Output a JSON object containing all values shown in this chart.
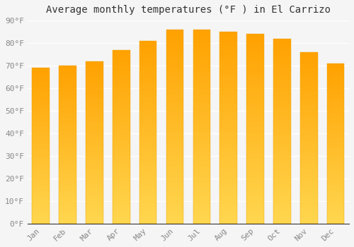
{
  "title": "Average monthly temperatures (°F ) in El Carrizo",
  "months": [
    "Jan",
    "Feb",
    "Mar",
    "Apr",
    "May",
    "Jun",
    "Jul",
    "Aug",
    "Sep",
    "Oct",
    "Nov",
    "Dec"
  ],
  "values": [
    69,
    70,
    72,
    77,
    81,
    86,
    86,
    85,
    84,
    82,
    76,
    71
  ],
  "bar_color_bottom": "#FFD54F",
  "bar_color_top": "#FFA000",
  "ylim": [
    0,
    90
  ],
  "yticks": [
    0,
    10,
    20,
    30,
    40,
    50,
    60,
    70,
    80,
    90
  ],
  "ytick_labels": [
    "0°F",
    "10°F",
    "20°F",
    "30°F",
    "40°F",
    "50°F",
    "60°F",
    "70°F",
    "80°F",
    "90°F"
  ],
  "background_color": "#f5f5f5",
  "grid_color": "#ffffff",
  "title_fontsize": 10,
  "tick_fontsize": 8,
  "font_family": "monospace",
  "bar_width": 0.65,
  "bar_edge_color": "#E8A000"
}
